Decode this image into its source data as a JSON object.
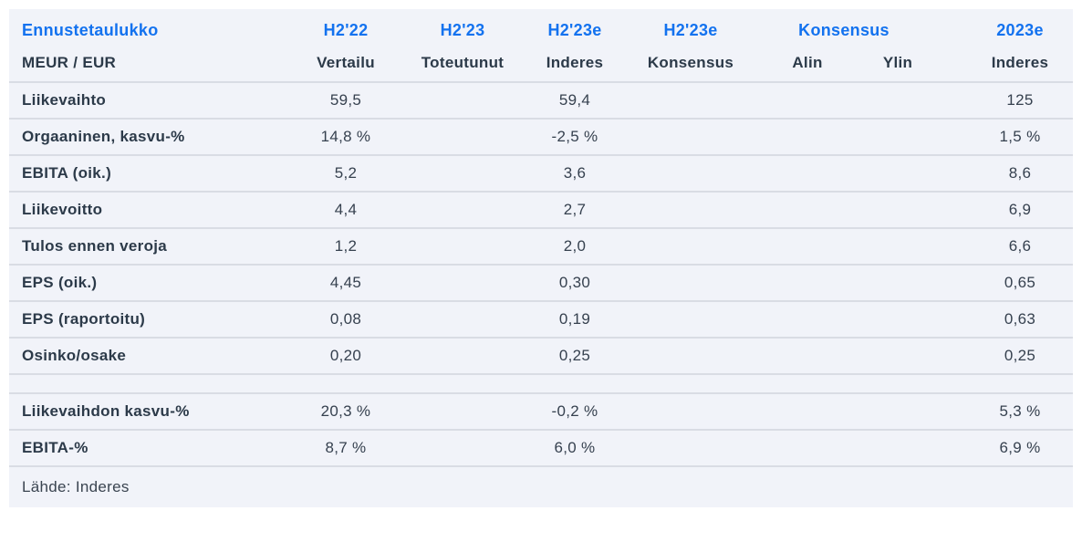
{
  "table": {
    "title": "Ennustetaulukko",
    "unit_label": "MEUR / EUR",
    "col_groups": [
      "H2'22",
      "H2'23",
      "H2'23e",
      "H2'23e",
      "Konsensus",
      "2023e"
    ],
    "sub_headers": [
      "Vertailu",
      "Toteutunut",
      "Inderes",
      "Konsensus",
      "Alin",
      "Ylin",
      "Inderes"
    ],
    "rows": [
      {
        "label": "Liikevaihto",
        "values": [
          "59,5",
          "",
          "59,4",
          "",
          "",
          "",
          "125"
        ]
      },
      {
        "label": "Orgaaninen, kasvu-%",
        "values": [
          "14,8 %",
          "",
          "-2,5 %",
          "",
          "",
          "",
          "1,5 %"
        ]
      },
      {
        "label": "EBITA (oik.)",
        "values": [
          "5,2",
          "",
          "3,6",
          "",
          "",
          "",
          "8,6"
        ]
      },
      {
        "label": "Liikevoitto",
        "values": [
          "4,4",
          "",
          "2,7",
          "",
          "",
          "",
          "6,9"
        ]
      },
      {
        "label": "Tulos ennen veroja",
        "values": [
          "1,2",
          "",
          "2,0",
          "",
          "",
          "",
          "6,6"
        ]
      },
      {
        "label": "EPS (oik.)",
        "values": [
          "4,45",
          "",
          "0,30",
          "",
          "",
          "",
          "0,65"
        ]
      },
      {
        "label": "EPS (raportoitu)",
        "values": [
          "0,08",
          "",
          "0,19",
          "",
          "",
          "",
          "0,63"
        ]
      },
      {
        "label": "Osinko/osake",
        "values": [
          "0,20",
          "",
          "0,25",
          "",
          "",
          "",
          "0,25"
        ]
      },
      {
        "label": "",
        "spacer": true,
        "values": [
          "",
          "",
          "",
          "",
          "",
          "",
          ""
        ]
      },
      {
        "label": "Liikevaihdon kasvu-%",
        "values": [
          "20,3 %",
          "",
          "-0,2 %",
          "",
          "",
          "",
          "5,3 %"
        ]
      },
      {
        "label": "EBITA-%",
        "values": [
          "8,7 %",
          "",
          "6,0 %",
          "",
          "",
          "",
          "6,9 %"
        ]
      }
    ],
    "source": "Lähde: Inderes"
  },
  "colors": {
    "accent_blue": "#1372ef",
    "header_text": "#2c3a49",
    "value_text": "#36414f",
    "row_bg": "#f1f3f9",
    "divider": "#d9dce4",
    "page_bg": "#ffffff"
  }
}
